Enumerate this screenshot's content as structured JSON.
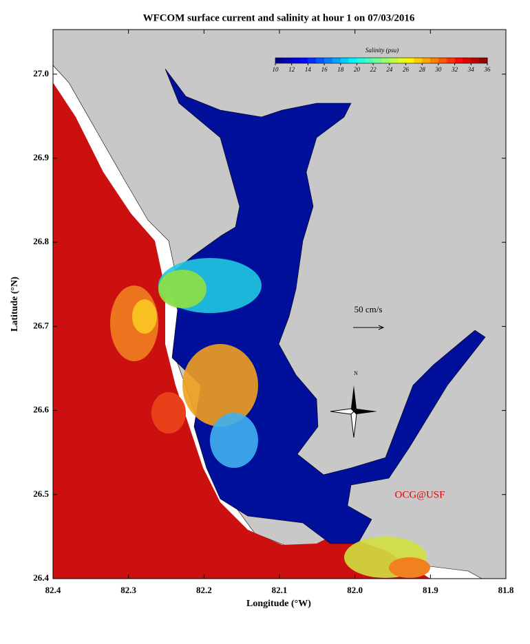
{
  "chart_data": {
    "type": "map",
    "title": "WFCOM surface current and salinity at hour 1 on 07/03/2016",
    "x_label": "Longitude (°W)",
    "y_label": "Latitude (°N)",
    "xlim": [
      82.4,
      81.8
    ],
    "ylim": [
      26.4,
      27.053
    ],
    "xticks": [
      82.4,
      82.3,
      82.2,
      82.1,
      {
        "value": 82,
        "label": "82.0"
      },
      81.9,
      81.8
    ],
    "yticks": [
      26.4,
      26.5,
      26.6,
      26.7,
      26.8,
      26.9,
      {
        "value": 27,
        "label": "27.0"
      }
    ],
    "colorbar": {
      "label": "Salinity (psu)",
      "lim": [
        10,
        36
      ],
      "ticks": [
        10,
        12,
        14,
        16,
        18,
        20,
        22,
        24,
        26,
        28,
        30,
        32,
        34,
        36
      ]
    },
    "annotations": [
      "50 cm/s",
      "N",
      "OCG@USF"
    ]
  }
}
